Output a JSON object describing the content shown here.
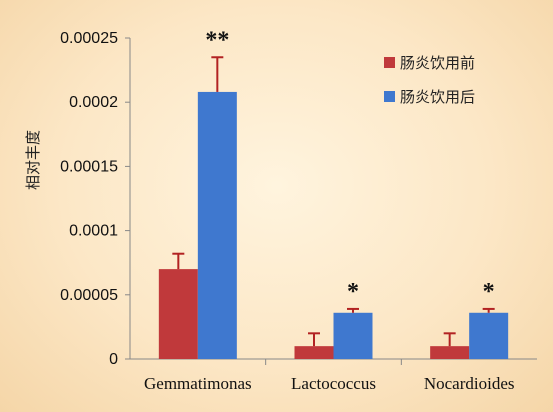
{
  "chart_data": {
    "type": "bar",
    "title": "",
    "xlabel": "",
    "ylabel": "相对丰度",
    "categories": [
      "Gemmatimonas",
      "Lactococcus",
      "Nocardioides"
    ],
    "series": [
      {
        "name": "肠炎饮用前",
        "values": [
          7e-05,
          1e-05,
          1e-05
        ],
        "errors": [
          1.2e-05,
          1e-05,
          1e-05
        ],
        "color": "#c0393b"
      },
      {
        "name": "肠炎饮用后",
        "values": [
          0.000208,
          3.6e-05,
          3.6e-05
        ],
        "errors": [
          2.7e-05,
          3e-06,
          3e-06
        ],
        "color": "#3f78cf"
      }
    ],
    "significance": [
      "**",
      "*",
      "*"
    ],
    "yticks": [
      "0",
      "0.00005",
      "0.0001",
      "0.00015",
      "0.0002",
      "0.00025"
    ],
    "ylim": [
      0,
      0.00025
    ],
    "grid": false,
    "legend_position": "top-right",
    "error_bar_color": "#b22222",
    "axis_color": "#888888"
  }
}
